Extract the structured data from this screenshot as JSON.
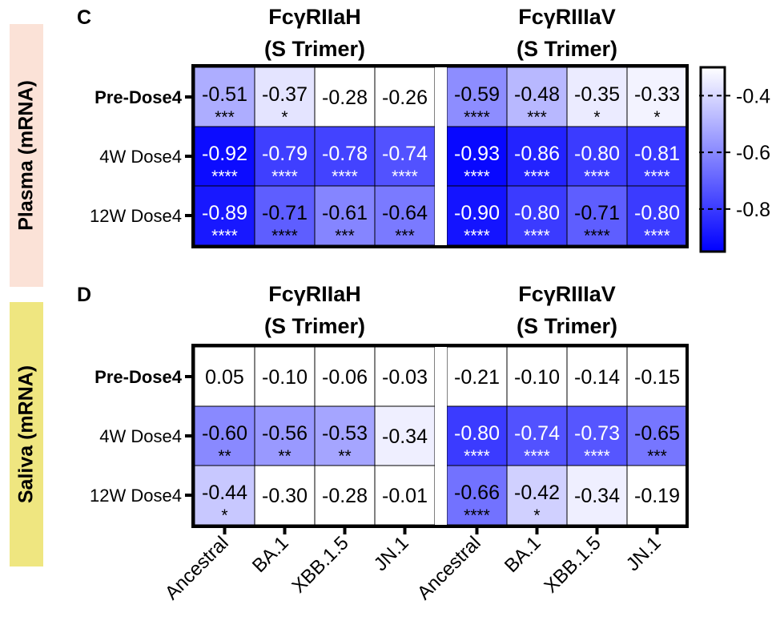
{
  "colors": {
    "min_color": "#0000ff",
    "max_color": "#ffffff"
  },
  "side_labels": {
    "plasma": "Plasma (mRNA)",
    "saliva": "Saliva (mRNA)"
  },
  "columns": [
    "Ancestral",
    "BA.1",
    "XBB.1.5",
    "JN.1",
    "Ancestral",
    "BA.1",
    "XBB.1.5",
    "JN.1"
  ],
  "chart_data": [
    {
      "type": "heatmap",
      "panel": "C",
      "group_titles": [
        {
          "line1": "FcγRIIaH",
          "line2": "(S Trimer)"
        },
        {
          "line1": "FcγRIIIaV",
          "line2": "(S Trimer)"
        }
      ],
      "rows": [
        {
          "label": "Pre-Dose4",
          "bold": true,
          "values": [
            "-0.51",
            "-0.37",
            "-0.28",
            "-0.26",
            "-0.59",
            "-0.48",
            "-0.35",
            "-0.33"
          ],
          "stars": [
            "***",
            "*",
            "",
            "",
            "****",
            "***",
            "*",
            "*"
          ]
        },
        {
          "label": "4W Dose4",
          "bold": false,
          "values": [
            "-0.92",
            "-0.79",
            "-0.78",
            "-0.74",
            "-0.93",
            "-0.86",
            "-0.80",
            "-0.81"
          ],
          "stars": [
            "****",
            "****",
            "****",
            "****",
            "****",
            "****",
            "****",
            "****"
          ]
        },
        {
          "label": "12W Dose4",
          "bold": false,
          "values": [
            "-0.89",
            "-0.71",
            "-0.61",
            "-0.64",
            "-0.90",
            "-0.80",
            "-0.71",
            "-0.80"
          ],
          "stars": [
            "****",
            "****",
            "***",
            "***",
            "****",
            "****",
            "****",
            "****"
          ]
        }
      ],
      "colorbar": {
        "range": [
          -0.95,
          -0.3
        ],
        "ticks": [
          "-0.4",
          "-0.6",
          "-0.8"
        ]
      }
    },
    {
      "type": "heatmap",
      "panel": "D",
      "group_titles": [
        {
          "line1": "FcγRIIaH",
          "line2": "(S Trimer)"
        },
        {
          "line1": "FcγRIIIaV",
          "line2": "(S Trimer)"
        }
      ],
      "rows": [
        {
          "label": "Pre-Dose4",
          "bold": true,
          "values": [
            "0.05",
            "-0.10",
            "-0.06",
            "-0.03",
            "-0.21",
            "-0.10",
            "-0.14",
            "-0.15"
          ],
          "stars": [
            "",
            "",
            "",
            "",
            "",
            "",
            "",
            ""
          ]
        },
        {
          "label": "4W Dose4",
          "bold": false,
          "values": [
            "-0.60",
            "-0.56",
            "-0.53",
            "-0.34",
            "-0.80",
            "-0.74",
            "-0.73",
            "-0.65"
          ],
          "stars": [
            "**",
            "**",
            "**",
            "",
            "****",
            "****",
            "****",
            "***"
          ]
        },
        {
          "label": "12W Dose4",
          "bold": false,
          "values": [
            "-0.44",
            "-0.30",
            "-0.28",
            "-0.01",
            "-0.66",
            "-0.42",
            "-0.34",
            "-0.19"
          ],
          "stars": [
            "*",
            "",
            "",
            "",
            "****",
            "*",
            "",
            ""
          ]
        }
      ]
    }
  ]
}
